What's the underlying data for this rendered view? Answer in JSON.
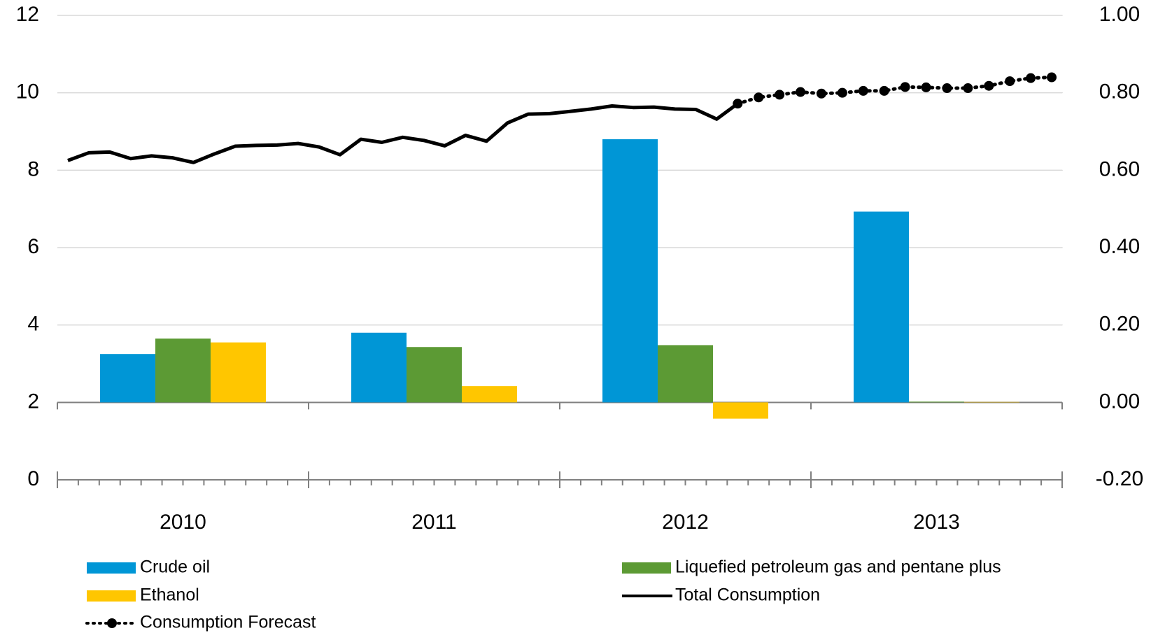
{
  "chart_data": {
    "type": "bar",
    "categories": [
      "2010",
      "2011",
      "2012",
      "2013"
    ],
    "series": [
      {
        "name": "Crude oil",
        "color": "#0096d6",
        "axis": "y2",
        "values": [
          0.125,
          0.18,
          0.68,
          0.493
        ]
      },
      {
        "name": "Liquefied petroleum gas and pentane plus",
        "color": "#5c9a34",
        "axis": "y2",
        "values": [
          0.165,
          0.143,
          0.148,
          0.002
        ]
      },
      {
        "name": "Ethanol",
        "color": "#ffc600",
        "axis": "y2",
        "values": [
          0.155,
          0.042,
          -0.042,
          0.001
        ]
      }
    ],
    "line_series": [
      {
        "name": "Total Consumption",
        "color": "#000000",
        "style": "solid",
        "values": [
          8.25,
          8.45,
          8.47,
          8.3,
          8.37,
          8.32,
          8.2,
          8.42,
          8.62,
          8.64,
          8.65,
          8.69,
          8.6,
          8.4,
          8.8,
          8.72,
          8.85,
          8.77,
          8.63,
          8.9,
          8.75,
          9.22,
          9.45,
          9.46,
          9.52,
          9.58,
          9.66,
          9.62,
          9.63,
          9.58,
          9.57,
          9.32,
          9.72,
          null,
          null,
          null,
          null,
          null,
          null,
          null,
          null,
          null,
          null,
          null,
          null,
          null,
          null,
          null
        ]
      },
      {
        "name": "Consumption Forecast",
        "color": "#000000",
        "style": "dotted-markers",
        "values": [
          null,
          null,
          null,
          null,
          null,
          null,
          null,
          null,
          null,
          null,
          null,
          null,
          null,
          null,
          null,
          null,
          null,
          null,
          null,
          null,
          null,
          null,
          null,
          null,
          null,
          null,
          null,
          null,
          null,
          null,
          null,
          null,
          9.72,
          9.88,
          9.95,
          10.02,
          9.98,
          10.0,
          10.05,
          10.05,
          10.15,
          10.14,
          10.12,
          10.12,
          10.18,
          10.3,
          10.38,
          10.4
        ]
      }
    ],
    "ylim": [
      0,
      12
    ],
    "yticks": [
      0,
      2,
      4,
      6,
      8,
      10,
      12
    ],
    "y2lim": [
      -0.2,
      1.0
    ],
    "y2ticks": [
      {
        "value": -0.2,
        "label": "-0.20"
      },
      {
        "value": 0,
        "label": "0.00"
      },
      {
        "value": 0.2,
        "label": "0.20"
      },
      {
        "value": 0.4,
        "label": "0.40"
      },
      {
        "value": 0.6,
        "label": "0.60"
      },
      {
        "value": 0.8,
        "label": "0.80"
      },
      {
        "value": 1.0,
        "label": "1.00"
      }
    ],
    "grid": true
  }
}
